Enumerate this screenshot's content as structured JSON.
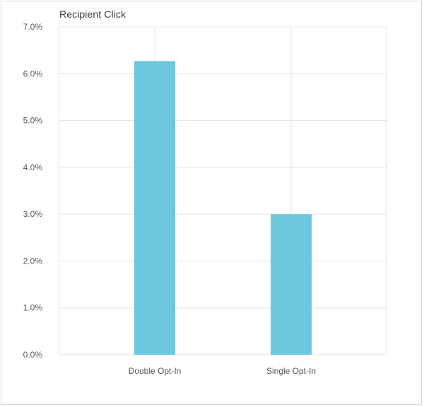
{
  "chart_data": {
    "type": "bar",
    "title": "Recipient Click",
    "xlabel": "",
    "ylabel": "",
    "categories": [
      "Double Opt-In",
      "Single Opt-In"
    ],
    "values": [
      6.27,
      3.0
    ],
    "ylim": [
      0,
      7
    ],
    "yticks": [
      "0.0%",
      "1.0%",
      "2.0%",
      "3.0%",
      "4.0%",
      "5.0%",
      "6.0%",
      "7.0%"
    ],
    "grid": true,
    "legend": "none",
    "bar_color": "#6cc7df",
    "grid_color": "#e3e3e3"
  }
}
